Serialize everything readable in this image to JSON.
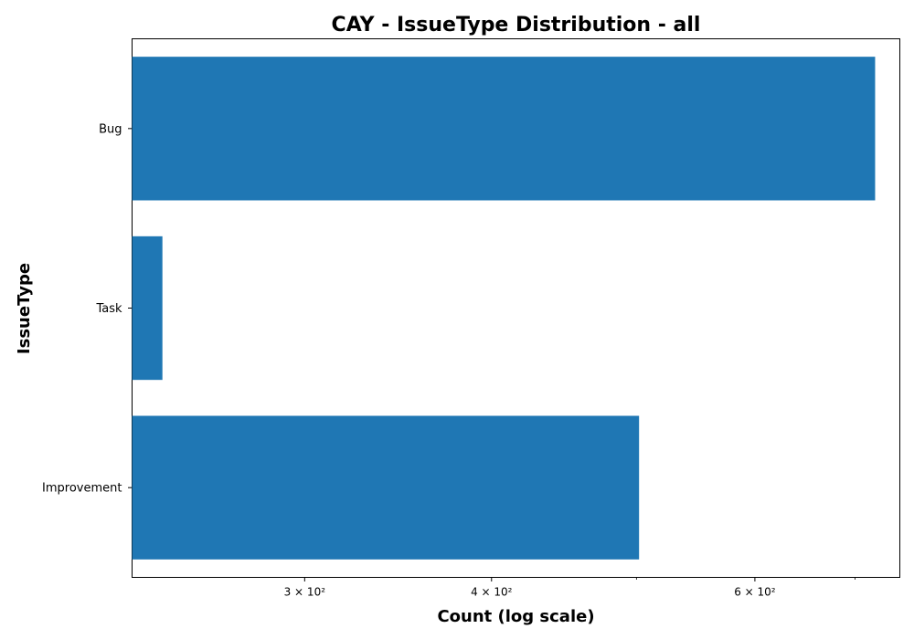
{
  "chart_data": {
    "type": "bar",
    "orientation": "horizontal",
    "title": "CAY - IssueType Distribution - all",
    "xlabel": "Count (log scale)",
    "ylabel": "IssueType",
    "x_scale": "log",
    "xlim": [
      230,
      750
    ],
    "categories": [
      "Bug",
      "Task",
      "Improvement"
    ],
    "values": [
      722,
      241,
      502
    ],
    "x_major_ticks": [
      {
        "value": 300,
        "label": "3 × 10²"
      },
      {
        "value": 400,
        "label": "4 × 10²"
      },
      {
        "value": 600,
        "label": "6 × 10²"
      }
    ],
    "x_minor_ticks": [
      500,
      700
    ],
    "bar_color": "#1f77b4",
    "grid": false,
    "legend": "none"
  }
}
